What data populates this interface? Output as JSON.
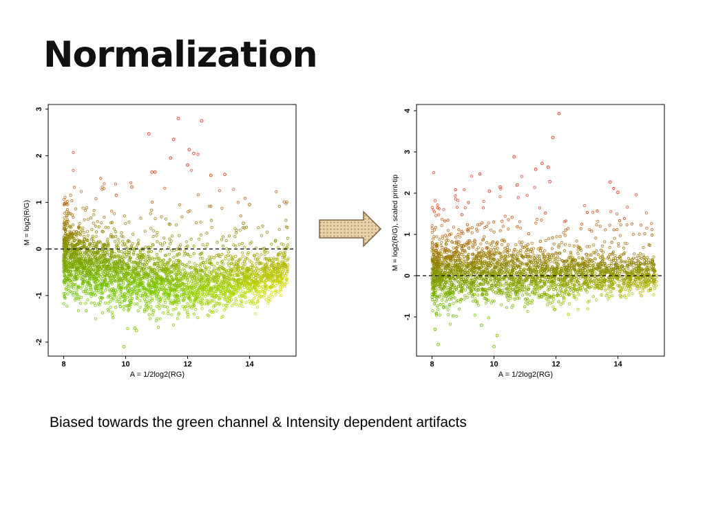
{
  "slide": {
    "title": "Normalization",
    "caption": "Biased towards the green channel & Intensity dependent artifacts"
  },
  "arrow_icon": "right-arrow-icon",
  "colors": {
    "red": "#e8412a",
    "olive": "#8b8a00",
    "green": "#6cc400",
    "yellow": "#e6e600",
    "frame": "#000000",
    "arrow_fill": "#e4c79a",
    "arrow_stroke": "#7a6440"
  },
  "chart_data": [
    {
      "type": "scatter",
      "title": "",
      "xlabel": "A = 1/2log2(RG)",
      "ylabel": "M = log2(R/G)",
      "xlim": [
        7.5,
        15.5
      ],
      "ylim": [
        -2.3,
        3.1
      ],
      "xticks": [
        "8",
        "10",
        "12",
        "14"
      ],
      "xtick_values": [
        8,
        10,
        12,
        14
      ],
      "yticks": [
        "-2",
        "-1",
        "0",
        "1",
        "2",
        "3"
      ],
      "ytick_values": [
        -2,
        -1,
        0,
        1,
        2,
        3
      ],
      "reference_line": 0,
      "grid": false,
      "approx_point_count": 9000,
      "trend": {
        "x": [
          7.9,
          8.5,
          9.0,
          9.5,
          10.0,
          10.5,
          11.0,
          11.5,
          12.0,
          12.5,
          13.0,
          13.5,
          14.0,
          14.5,
          15.0,
          15.3
        ],
        "m": [
          -0.15,
          -0.3,
          -0.45,
          -0.55,
          -0.62,
          -0.68,
          -0.72,
          -0.76,
          -0.78,
          -0.78,
          -0.77,
          -0.74,
          -0.69,
          -0.62,
          -0.52,
          -0.45
        ]
      },
      "outliers": [
        {
          "x": 11.7,
          "y": 2.8
        },
        {
          "x": 12.45,
          "y": 2.75
        },
        {
          "x": 10.75,
          "y": 2.47
        },
        {
          "x": 11.55,
          "y": 2.35
        },
        {
          "x": 12.05,
          "y": 2.13
        },
        {
          "x": 12.2,
          "y": 2.05
        },
        {
          "x": 11.45,
          "y": 1.95
        },
        {
          "x": 10.85,
          "y": 1.65
        },
        {
          "x": 10.95,
          "y": 1.65
        },
        {
          "x": 12.0,
          "y": 1.8
        },
        {
          "x": 13.2,
          "y": 1.6
        },
        {
          "x": 12.75,
          "y": 1.58
        },
        {
          "x": 10.2,
          "y": 1.33
        },
        {
          "x": 9.7,
          "y": 1.15
        },
        {
          "x": 9.95,
          "y": -2.1
        },
        {
          "x": 10.35,
          "y": -1.75
        },
        {
          "x": 10.3,
          "y": -1.7
        },
        {
          "x": 14.0,
          "y": 0.95
        },
        {
          "x": 13.8,
          "y": 0.55
        }
      ]
    },
    {
      "type": "scatter",
      "title": "",
      "xlabel": "A = 1/2log2(RG)",
      "ylabel": "M = log2(R/G), scaled print-tip",
      "xlim": [
        7.5,
        15.5
      ],
      "ylim": [
        -1.95,
        4.15
      ],
      "xticks": [
        "8",
        "10",
        "12",
        "14"
      ],
      "xtick_values": [
        8,
        10,
        12,
        14
      ],
      "yticks": [
        "-1",
        "0",
        "1",
        "2",
        "3",
        "4"
      ],
      "ytick_values": [
        -1,
        0,
        1,
        2,
        3,
        4
      ],
      "reference_line": 0,
      "grid": false,
      "approx_point_count": 9000,
      "trend": {
        "x": [
          7.9,
          8.5,
          9.0,
          9.5,
          10.0,
          10.5,
          11.0,
          11.5,
          12.0,
          12.5,
          13.0,
          13.5,
          14.0,
          14.5,
          15.0,
          15.3
        ],
        "m": [
          0.0,
          0.02,
          0.03,
          0.04,
          0.03,
          0.02,
          0.01,
          0.0,
          0.0,
          0.0,
          0.01,
          0.02,
          0.03,
          0.03,
          0.02,
          0.02
        ]
      },
      "outliers": [
        {
          "x": 12.1,
          "y": 3.93
        },
        {
          "x": 11.9,
          "y": 3.35
        },
        {
          "x": 10.65,
          "y": 2.88
        },
        {
          "x": 11.55,
          "y": 2.72
        },
        {
          "x": 11.35,
          "y": 2.58
        },
        {
          "x": 11.75,
          "y": 2.63
        },
        {
          "x": 13.75,
          "y": 2.27
        },
        {
          "x": 14.0,
          "y": 2.02
        },
        {
          "x": 10.2,
          "y": 2.15
        },
        {
          "x": 9.85,
          "y": 2.05
        },
        {
          "x": 11.8,
          "y": 2.28
        },
        {
          "x": 10.75,
          "y": 2.2
        },
        {
          "x": 10.0,
          "y": -1.72
        },
        {
          "x": 8.2,
          "y": -1.67
        },
        {
          "x": 8.1,
          "y": -1.3
        },
        {
          "x": 9.6,
          "y": -1.2
        },
        {
          "x": 10.1,
          "y": -1.45
        }
      ]
    }
  ]
}
